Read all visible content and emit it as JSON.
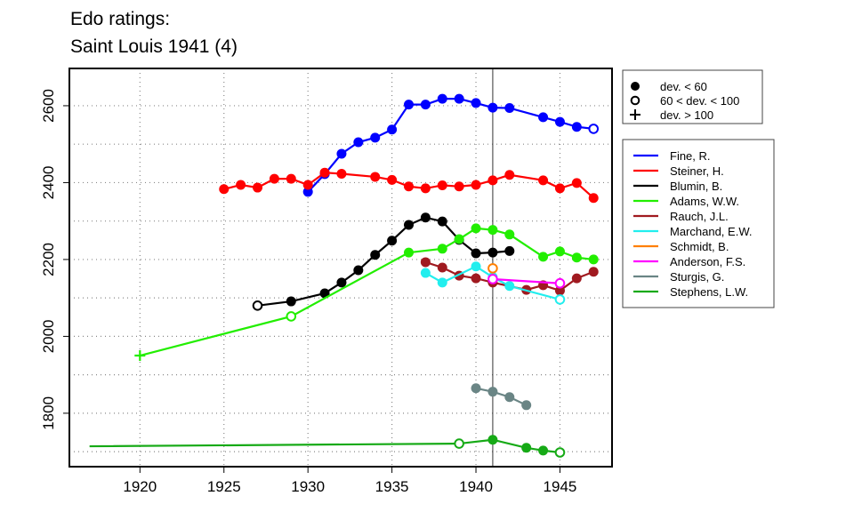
{
  "chart_data": {
    "type": "line",
    "title": [
      "Edo ratings:",
      "Saint Louis 1941 (4)"
    ],
    "xlabel": "",
    "ylabel": "",
    "xlim": [
      1915.8,
      1948.1
    ],
    "ylim": [
      1661,
      2697
    ],
    "xticks": [
      1920,
      1925,
      1930,
      1935,
      1940,
      1945
    ],
    "yticks": [
      1800,
      2000,
      2200,
      2400,
      2600
    ],
    "grid": "dotted",
    "reference_line_year": 1941,
    "marker_legend": [
      {
        "symbol": "filled",
        "label": "dev. < 60"
      },
      {
        "symbol": "open",
        "label": "60 < dev. < 100"
      },
      {
        "symbol": "plus",
        "label": "dev. > 100"
      }
    ],
    "legend_position": "right",
    "series": [
      {
        "name": "Fine, R.",
        "color": "#0000ff",
        "points": [
          [
            1930,
            2376,
            "f"
          ],
          [
            1931,
            2422,
            "f"
          ],
          [
            1932,
            2475,
            "f"
          ],
          [
            1933,
            2505,
            "f"
          ],
          [
            1934,
            2517,
            "f"
          ],
          [
            1935,
            2538,
            "f"
          ],
          [
            1936,
            2603,
            "f"
          ],
          [
            1937,
            2603,
            "f"
          ],
          [
            1938,
            2618,
            "f"
          ],
          [
            1939,
            2618,
            "f"
          ],
          [
            1940,
            2607,
            "f"
          ],
          [
            1941,
            2595,
            "f"
          ],
          [
            1942,
            2594,
            "f"
          ],
          [
            1944,
            2570,
            "f"
          ],
          [
            1945,
            2558,
            "f"
          ],
          [
            1946,
            2545,
            "f"
          ],
          [
            1947,
            2540,
            "o"
          ]
        ]
      },
      {
        "name": "Steiner, H.",
        "color": "#ff0000",
        "points": [
          [
            1925,
            2383,
            "f"
          ],
          [
            1926,
            2394,
            "f"
          ],
          [
            1927,
            2387,
            "f"
          ],
          [
            1928,
            2410,
            "f"
          ],
          [
            1929,
            2410,
            "f"
          ],
          [
            1930,
            2394,
            "f"
          ],
          [
            1931,
            2426,
            "f"
          ],
          [
            1932,
            2423,
            "f"
          ],
          [
            1934,
            2415,
            "f"
          ],
          [
            1935,
            2407,
            "f"
          ],
          [
            1936,
            2390,
            "f"
          ],
          [
            1937,
            2385,
            "f"
          ],
          [
            1938,
            2393,
            "f"
          ],
          [
            1939,
            2390,
            "f"
          ],
          [
            1940,
            2394,
            "f"
          ],
          [
            1941,
            2406,
            "f"
          ],
          [
            1942,
            2420,
            "f"
          ],
          [
            1944,
            2406,
            "f"
          ],
          [
            1945,
            2385,
            "f"
          ],
          [
            1946,
            2399,
            "f"
          ],
          [
            1947,
            2360,
            "f"
          ]
        ]
      },
      {
        "name": "Blumin, B.",
        "color": "#000000",
        "points": [
          [
            1927,
            2080,
            "o"
          ],
          [
            1929,
            2091,
            "f"
          ],
          [
            1931,
            2112,
            "f"
          ],
          [
            1932,
            2140,
            "f"
          ],
          [
            1933,
            2172,
            "f"
          ],
          [
            1934,
            2212,
            "f"
          ],
          [
            1935,
            2249,
            "f"
          ],
          [
            1936,
            2290,
            "f"
          ],
          [
            1937,
            2309,
            "f"
          ],
          [
            1938,
            2299,
            "f"
          ],
          [
            1939,
            2251,
            "f"
          ],
          [
            1940,
            2216,
            "f"
          ],
          [
            1941,
            2218,
            "f"
          ],
          [
            1942,
            2222,
            "f"
          ]
        ]
      },
      {
        "name": "Adams, W.W.",
        "color": "#22ee00",
        "points": [
          [
            1920,
            1950,
            "+"
          ],
          [
            1929,
            2052,
            "o"
          ],
          [
            1936,
            2218,
            "f"
          ],
          [
            1938,
            2228,
            "f"
          ],
          [
            1939,
            2253,
            "f"
          ],
          [
            1940,
            2281,
            "f"
          ],
          [
            1941,
            2277,
            "f"
          ],
          [
            1942,
            2265,
            "f"
          ],
          [
            1944,
            2207,
            "f"
          ],
          [
            1945,
            2221,
            "f"
          ],
          [
            1946,
            2205,
            "f"
          ],
          [
            1947,
            2200,
            "f"
          ]
        ]
      },
      {
        "name": "Rauch, J.L.",
        "color": "#a01a20",
        "points": [
          [
            1937,
            2193,
            "f"
          ],
          [
            1938,
            2179,
            "f"
          ],
          [
            1939,
            2158,
            "f"
          ],
          [
            1940,
            2151,
            "f"
          ],
          [
            1941,
            2140,
            "f"
          ],
          [
            1943,
            2121,
            "f"
          ],
          [
            1944,
            2133,
            "f"
          ],
          [
            1945,
            2119,
            "f"
          ],
          [
            1946,
            2151,
            "f"
          ],
          [
            1947,
            2168,
            "f"
          ]
        ]
      },
      {
        "name": "Marchand, E.W.",
        "color": "#22eeee",
        "points": [
          [
            1937,
            2165,
            "f"
          ],
          [
            1938,
            2140,
            "f"
          ],
          [
            1940,
            2182,
            "f"
          ],
          [
            1941,
            2154,
            "f"
          ],
          [
            1942,
            2131,
            "f"
          ],
          [
            1945,
            2096,
            "o"
          ]
        ]
      },
      {
        "name": "Schmidt, B.",
        "color": "#ff7f00",
        "points": [
          [
            1941,
            2177,
            "o"
          ]
        ]
      },
      {
        "name": "Anderson, F.S.",
        "color": "#ff00ff",
        "points": [
          [
            1941,
            2149,
            "o"
          ],
          [
            1945,
            2138,
            "o"
          ]
        ]
      },
      {
        "name": "Sturgis, G.",
        "color": "#6a8585",
        "points": [
          [
            1940,
            1865,
            "f"
          ],
          [
            1941,
            1856,
            "f"
          ],
          [
            1942,
            1842,
            "f"
          ],
          [
            1943,
            1821,
            "f"
          ]
        ]
      },
      {
        "name": "Stephens, L.W.",
        "color": "#16aa16",
        "points": [
          [
            1917,
            1714,
            "n"
          ],
          [
            1939,
            1721,
            "o"
          ],
          [
            1941,
            1731,
            "f"
          ],
          [
            1943,
            1710,
            "f"
          ],
          [
            1944,
            1703,
            "f"
          ],
          [
            1945,
            1698,
            "o"
          ]
        ]
      }
    ]
  }
}
